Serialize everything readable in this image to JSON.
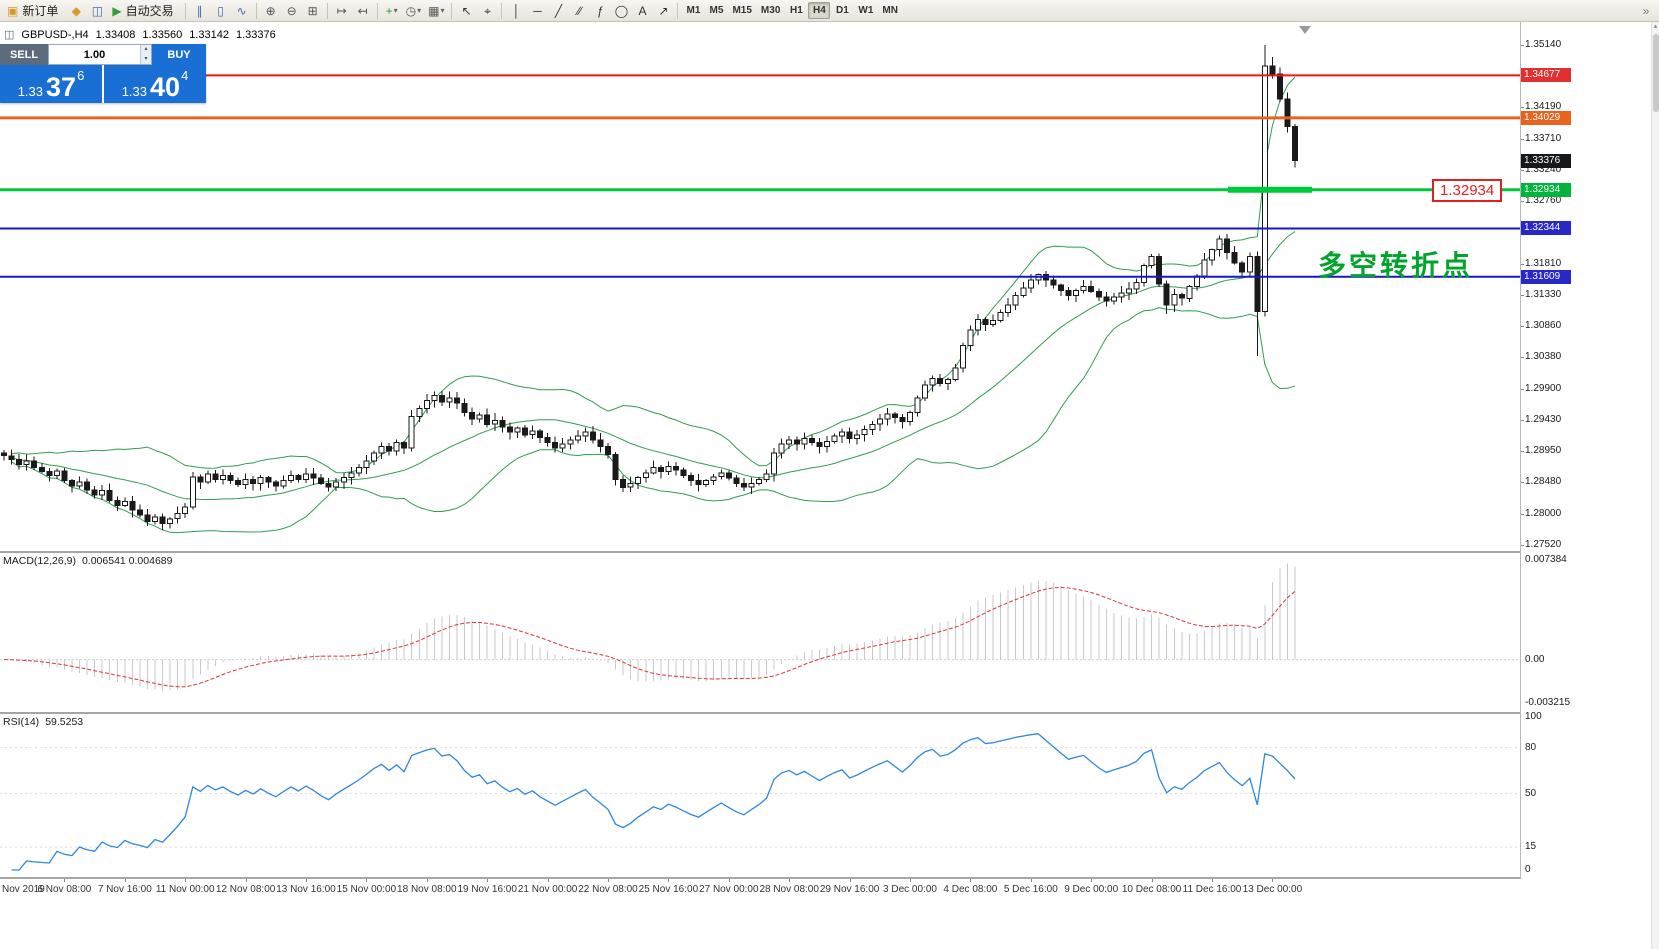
{
  "toolbar": {
    "new_order_label": "新订单",
    "autotrading_label": "自动交易",
    "timeframes": [
      "M1",
      "M5",
      "M15",
      "M30",
      "H1",
      "H4",
      "D1",
      "W1",
      "MN"
    ],
    "active_timeframe": "H4",
    "items": [
      {
        "t": "b",
        "name": "new-order-button",
        "icon": "new-order-icon",
        "glyph": "▣",
        "c": "#d79b2a",
        "labelKey": "new_order_label"
      },
      {
        "t": "i",
        "name": "alerts-button",
        "icon": "bell-icon",
        "glyph": "◆",
        "c": "#d79b2a"
      },
      {
        "t": "i",
        "name": "market-watch-button",
        "icon": "market-watch-icon",
        "glyph": "◫",
        "c": "#3a6ebc"
      },
      {
        "t": "b",
        "name": "autotrading-button",
        "icon": "play-icon",
        "glyph": "▶",
        "c": "#2e9e3a",
        "labelKey": "autotrading_label"
      },
      {
        "t": "s"
      },
      {
        "t": "i",
        "name": "bar-chart-button",
        "icon": "bar-chart-icon",
        "glyph": "∥",
        "c": "#3a6ebc"
      },
      {
        "t": "i",
        "name": "candlestick-button",
        "icon": "candlestick-icon",
        "glyph": "▯",
        "c": "#3a6ebc"
      },
      {
        "t": "i",
        "name": "line-chart-button",
        "icon": "line-chart-icon",
        "glyph": "∿",
        "c": "#3a6ebc"
      },
      {
        "t": "s"
      },
      {
        "t": "i",
        "name": "zoom-in-button",
        "icon": "zoom-in-icon",
        "glyph": "⊕",
        "c": "#555555"
      },
      {
        "t": "i",
        "name": "zoom-out-button",
        "icon": "zoom-out-icon",
        "glyph": "⊖",
        "c": "#555555"
      },
      {
        "t": "i",
        "name": "tile-windows-button",
        "icon": "tile-windows-icon",
        "glyph": "⊞",
        "c": "#555555"
      },
      {
        "t": "s"
      },
      {
        "t": "i",
        "name": "auto-scroll-button",
        "icon": "auto-scroll-icon",
        "glyph": "↦",
        "c": "#555555"
      },
      {
        "t": "i",
        "name": "chart-shift-button",
        "icon": "chart-shift-icon",
        "glyph": "↤",
        "c": "#555555"
      },
      {
        "t": "s"
      },
      {
        "t": "i",
        "name": "indicators-button",
        "icon": "indicators-plus-icon",
        "glyph": "+",
        "c": "#2e9e3a",
        "dd": true
      },
      {
        "t": "i",
        "name": "periods-button",
        "icon": "clock-icon",
        "glyph": "◷",
        "c": "#555555",
        "dd": true
      },
      {
        "t": "i",
        "name": "templates-button",
        "icon": "template-icon",
        "glyph": "▦",
        "c": "#555555",
        "dd": true
      },
      {
        "t": "s"
      },
      {
        "t": "i",
        "name": "cursor-button",
        "icon": "cursor-icon",
        "glyph": "↖",
        "c": "#333333"
      },
      {
        "t": "i",
        "name": "crosshair-button",
        "icon": "crosshair-icon",
        "glyph": "⌖",
        "c": "#333333"
      },
      {
        "t": "s"
      },
      {
        "t": "i",
        "name": "vertical-line-button",
        "icon": "vertical-line-icon",
        "glyph": "│",
        "c": "#333333"
      },
      {
        "t": "i",
        "name": "horizontal-line-button",
        "icon": "horizontal-line-icon",
        "glyph": "─",
        "c": "#333333"
      },
      {
        "t": "i",
        "name": "trendline-button",
        "icon": "trendline-icon",
        "glyph": "╱",
        "c": "#333333"
      },
      {
        "t": "i",
        "name": "channel-button",
        "icon": "channel-icon",
        "glyph": "∕∕",
        "c": "#333333"
      },
      {
        "t": "i",
        "name": "fibonacci-button",
        "icon": "fibonacci-icon",
        "glyph": "ƒ",
        "c": "#333333"
      },
      {
        "t": "i",
        "name": "shapes-button",
        "icon": "ellipse-icon",
        "glyph": "◯",
        "c": "#333333"
      },
      {
        "t": "i",
        "name": "text-button",
        "icon": "text-icon",
        "glyph": "A",
        "c": "#333333"
      },
      {
        "t": "i",
        "name": "arrow-tool-button",
        "icon": "arrow-tool-icon",
        "glyph": "↗",
        "c": "#333333"
      },
      {
        "t": "s"
      },
      {
        "t": "tf"
      },
      {
        "t": "i",
        "name": "toolbar-overflow-button",
        "icon": "chevron-right-icon",
        "glyph": "»",
        "c": "#777777",
        "mlAuto": true
      }
    ]
  },
  "icons": {
    "chart_header_icon": "◫",
    "spinner_up": "▴",
    "spinner_down": "▾",
    "scrollbar_up": "▴"
  },
  "chart_header": {
    "symbol_period": "GBPUSD-,H4",
    "open": "1.33408",
    "high": "1.33560",
    "low": "1.33142",
    "close": "1.33376"
  },
  "trade_panel": {
    "sell_label": "SELL",
    "buy_label": "BUY",
    "volume": "1.00",
    "bid_small": "1.33",
    "bid_big": "37",
    "bid_sup": "6",
    "ask_small": "1.33",
    "ask_big": "40",
    "ask_sup": "4"
  },
  "annotations": {
    "turning_point_text": "多空转折点",
    "turning_point_color": "#00a42a",
    "price_callout": "1.32934",
    "price_callout_color": "#e02020"
  },
  "levels": [
    {
      "price": 1.34677,
      "label": "1.34677",
      "color": "#f01414",
      "badge": "#e03030",
      "width": 2
    },
    {
      "price": 1.34029,
      "label": "1.34029",
      "color": "#e8641e",
      "badge": "#e8641e",
      "width": 3
    },
    {
      "price": 1.32934,
      "label": "1.32934",
      "color": "#00c83c",
      "badge": "#00b43c",
      "width": 3,
      "bold_from": 1228,
      "bold_to": 1312,
      "bold_width": 6
    },
    {
      "price": 1.32344,
      "label": "1.32344",
      "color": "#1616cc",
      "badge": "#2828c8",
      "width": 2
    },
    {
      "price": 1.31609,
      "label": "1.31609",
      "color": "#1616cc",
      "badge": "#2828c8",
      "width": 2
    }
  ],
  "current_price": {
    "label": "1.33376",
    "value": 1.33376,
    "badge": "#15181c"
  },
  "price_axis_ticks": [
    "1.35140",
    "1.34190",
    "1.33710",
    "1.33240",
    "1.32760",
    "1.32280",
    "1.31810",
    "1.31330",
    "1.30860",
    "1.30380",
    "1.29900",
    "1.29430",
    "1.28950",
    "1.28480",
    "1.28000",
    "1.27520"
  ],
  "macd_panel": {
    "title": "MACD(12,26,9)",
    "values": "0.006541 0.004689",
    "scale": [
      {
        "label": "0.007384",
        "value": 0.007384
      },
      {
        "label": "0.00",
        "value": 0
      },
      {
        "label": "-0.003215",
        "value": -0.003215
      }
    ]
  },
  "rsi_panel": {
    "title": "RSI(14)",
    "value": "59.5253",
    "scale": [
      {
        "label": "100",
        "value": 100
      },
      {
        "label": "80",
        "value": 80
      },
      {
        "label": "50",
        "value": 50
      },
      {
        "label": "15",
        "value": 15
      },
      {
        "label": "0",
        "value": 0
      }
    ]
  },
  "time_axis": {
    "first_label": "Nov 2019",
    "labels": [
      "6 Nov 08:00",
      "7 Nov 16:00",
      "11 Nov 00:00",
      "12 Nov 08:00",
      "13 Nov 16:00",
      "15 Nov 00:00",
      "18 Nov 08:00",
      "19 Nov 16:00",
      "21 Nov 00:00",
      "22 Nov 08:00",
      "25 Nov 16:00",
      "27 Nov 00:00",
      "28 Nov 08:00",
      "29 Nov 16:00",
      "3 Dec 00:00",
      "4 Dec 08:00",
      "5 Dec 16:00",
      "9 Dec 00:00",
      "10 Dec 08:00",
      "11 Dec 16:00",
      "13 Dec 00:00"
    ]
  },
  "chart_data": {
    "type": "candlestick",
    "symbol": "GBPUSD-",
    "timeframe": "H4",
    "first_open": 1.2892,
    "closes": [
      1.2888,
      1.2882,
      1.2875,
      1.288,
      1.287,
      1.2864,
      1.2858,
      1.2865,
      1.285,
      1.2842,
      1.2848,
      1.2836,
      1.2828,
      1.2835,
      1.282,
      1.2812,
      1.2818,
      1.2805,
      1.2798,
      1.2788,
      1.2795,
      1.2785,
      1.2792,
      1.28,
      1.281,
      1.2856,
      1.2848,
      1.286,
      1.2852,
      1.2858,
      1.285,
      1.2844,
      1.2852,
      1.2846,
      1.2855,
      1.2848,
      1.2842,
      1.285,
      1.2858,
      1.2852,
      1.286,
      1.2854,
      1.2846,
      1.284,
      1.2848,
      1.2855,
      1.2862,
      1.287,
      1.288,
      1.2892,
      1.2902,
      1.2895,
      1.2908,
      1.29,
      1.2948,
      1.296,
      1.2972,
      1.298,
      1.297,
      1.2976,
      1.2968,
      1.2954,
      1.2944,
      1.295,
      1.2936,
      1.2942,
      1.2932,
      1.2924,
      1.293,
      1.292,
      1.2926,
      1.2916,
      1.2908,
      1.29,
      1.2906,
      1.2912,
      1.2918,
      1.2924,
      1.2912,
      1.2902,
      1.289,
      1.2852,
      1.284,
      1.2846,
      1.2855,
      1.2862,
      1.287,
      1.2864,
      1.2872,
      1.2866,
      1.2858,
      1.285,
      1.2844,
      1.285,
      1.2856,
      1.2862,
      1.2854,
      1.2846,
      1.284,
      1.2846,
      1.2852,
      1.286,
      1.2892,
      1.2906,
      1.2912,
      1.2906,
      1.2914,
      1.2908,
      1.2902,
      1.291,
      1.2918,
      1.2924,
      1.2914,
      1.292,
      1.2928,
      1.2936,
      1.2944,
      1.2952,
      1.2946,
      1.294,
      1.2954,
      1.2976,
      1.2996,
      1.3006,
      1.2998,
      1.3004,
      1.3022,
      1.3056,
      1.308,
      1.3096,
      1.3088,
      1.3094,
      1.3106,
      1.3118,
      1.3132,
      1.3144,
      1.3156,
      1.3164,
      1.3156,
      1.3148,
      1.314,
      1.3132,
      1.314,
      1.3146,
      1.3138,
      1.313,
      1.3124,
      1.313,
      1.3136,
      1.3142,
      1.3152,
      1.3178,
      1.3192,
      1.315,
      1.3118,
      1.3134,
      1.3128,
      1.3146,
      1.3162,
      1.3186,
      1.3202,
      1.3218,
      1.3198,
      1.3182,
      1.3168,
      1.3192,
      1.3108,
      1.3482,
      1.347,
      1.3432,
      1.339,
      1.3338
    ],
    "overrides": {
      "154": {
        "low": 1.3104
      },
      "166": {
        "low": 1.304
      },
      "167": {
        "high": 1.3514,
        "low": 1.31
      },
      "168": {
        "high": 1.3496
      }
    },
    "indicators": {
      "bollinger_period": 20,
      "bollinger_dev": 2,
      "macd": [
        12,
        26,
        9
      ],
      "rsi": 14
    },
    "colors": {
      "bollinger": "#2f9e4f",
      "macd_hist": "#c9c9c9",
      "macd_signal": "#e03434",
      "rsi": "#2e86e0",
      "candle": "#1a1a1a"
    }
  }
}
